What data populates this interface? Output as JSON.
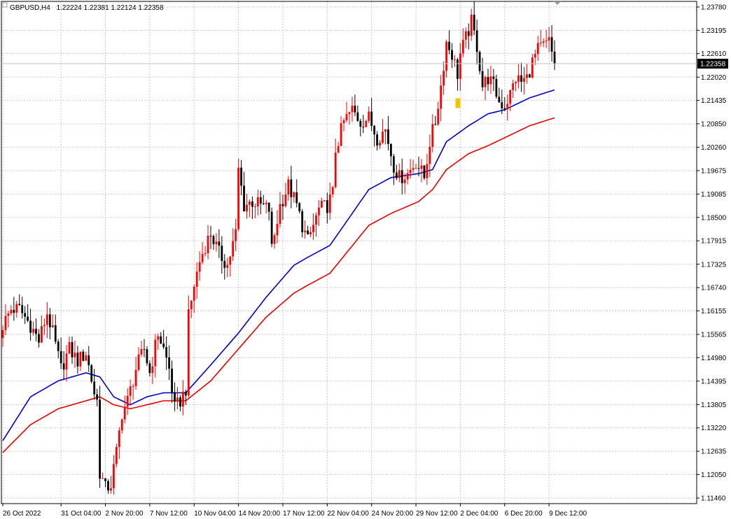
{
  "header": {
    "symbol_timeframe": "GBPUSD,H4",
    "ohlc": "1.22224 1.22381 1.22124 1.22358"
  },
  "chart_data": {
    "type": "candlestick",
    "symbol": "GBPUSD",
    "timeframe": "H4",
    "current_price": 1.22358,
    "current_price_label": "1.22358",
    "y_ticks": [
      "1.23780",
      "1.23195",
      "1.22610",
      "1.22020",
      "1.21435",
      "1.20850",
      "1.20260",
      "1.19675",
      "1.19085",
      "1.18500",
      "1.17915",
      "1.17325",
      "1.16740",
      "1.16155",
      "1.15565",
      "1.14980",
      "1.14395",
      "1.13805",
      "1.13220",
      "1.12635",
      "1.12050",
      "1.11460"
    ],
    "ylim": [
      1.1132,
      1.2392
    ],
    "x_ticks": [
      {
        "label": "26 Oct 2022",
        "bar": 0
      },
      {
        "label": "31 Oct 04:00",
        "bar": 21
      },
      {
        "label": "2 Nov 20:00",
        "bar": 37
      },
      {
        "label": "7 Nov 12:00",
        "bar": 53
      },
      {
        "label": "10 Nov 04:00",
        "bar": 69
      },
      {
        "label": "14 Nov 20:00",
        "bar": 85
      },
      {
        "label": "17 Nov 12:00",
        "bar": 101
      },
      {
        "label": "22 Nov 04:00",
        "bar": 117
      },
      {
        "label": "24 Nov 20:00",
        "bar": 133
      },
      {
        "label": "29 Nov 12:00",
        "bar": 149
      },
      {
        "label": "2 Dec 04:00",
        "bar": 165
      },
      {
        "label": "6 Dec 20:00",
        "bar": 181
      },
      {
        "label": "9 Dec 12:00",
        "bar": 197
      }
    ],
    "bar_count": 200,
    "candle_anchors": [
      [
        0,
        1.158
      ],
      [
        3,
        1.162
      ],
      [
        6,
        1.162
      ],
      [
        10,
        1.158
      ],
      [
        13,
        1.154
      ],
      [
        16,
        1.161
      ],
      [
        18,
        1.156
      ],
      [
        21,
        1.147
      ],
      [
        24,
        1.152
      ],
      [
        27,
        1.149
      ],
      [
        30,
        1.151
      ],
      [
        33,
        1.141
      ],
      [
        34,
        1.139
      ],
      [
        35,
        1.121
      ],
      [
        37,
        1.117
      ],
      [
        39,
        1.118
      ],
      [
        41,
        1.126
      ],
      [
        43,
        1.136
      ],
      [
        45,
        1.139
      ],
      [
        48,
        1.147
      ],
      [
        51,
        1.152
      ],
      [
        53,
        1.146
      ],
      [
        56,
        1.156
      ],
      [
        58,
        1.152
      ],
      [
        60,
        1.147
      ],
      [
        62,
        1.137
      ],
      [
        64,
        1.139
      ],
      [
        66,
        1.142
      ],
      [
        67,
        1.16
      ],
      [
        69,
        1.168
      ],
      [
        71,
        1.174
      ],
      [
        73,
        1.178
      ],
      [
        75,
        1.181
      ],
      [
        78,
        1.176
      ],
      [
        81,
        1.173
      ],
      [
        84,
        1.181
      ],
      [
        85,
        1.197
      ],
      [
        87,
        1.188
      ],
      [
        90,
        1.189
      ],
      [
        93,
        1.188
      ],
      [
        96,
        1.187
      ],
      [
        97,
        1.177
      ],
      [
        100,
        1.188
      ],
      [
        103,
        1.193
      ],
      [
        106,
        1.188
      ],
      [
        108,
        1.183
      ],
      [
        110,
        1.179
      ],
      [
        112,
        1.183
      ],
      [
        114,
        1.187
      ],
      [
        117,
        1.188
      ],
      [
        119,
        1.191
      ],
      [
        120,
        1.202
      ],
      [
        123,
        1.209
      ],
      [
        126,
        1.212
      ],
      [
        129,
        1.209
      ],
      [
        132,
        1.21
      ],
      [
        135,
        1.205
      ],
      [
        138,
        1.207
      ],
      [
        141,
        1.198
      ],
      [
        143,
        1.195
      ],
      [
        146,
        1.196
      ],
      [
        149,
        1.199
      ],
      [
        152,
        1.195
      ],
      [
        154,
        1.204
      ],
      [
        156,
        1.209
      ],
      [
        158,
        1.218
      ],
      [
        160,
        1.229
      ],
      [
        162,
        1.226
      ],
      [
        164,
        1.221
      ],
      [
        165,
        1.226
      ],
      [
        167,
        1.23
      ],
      [
        169,
        1.234
      ],
      [
        171,
        1.228
      ],
      [
        173,
        1.218
      ],
      [
        175,
        1.22
      ],
      [
        177,
        1.218
      ],
      [
        179,
        1.214
      ],
      [
        181,
        1.213
      ],
      [
        183,
        1.216
      ],
      [
        185,
        1.22
      ],
      [
        187,
        1.219
      ],
      [
        189,
        1.22
      ],
      [
        191,
        1.224
      ],
      [
        193,
        1.227
      ],
      [
        195,
        1.228
      ],
      [
        197,
        1.229
      ],
      [
        199,
        1.2236
      ]
    ],
    "series": [
      {
        "color": "#0000c8",
        "type": "moving-average-fast",
        "anchors": [
          [
            0,
            1.129
          ],
          [
            10,
            1.14
          ],
          [
            20,
            1.144
          ],
          [
            30,
            1.146
          ],
          [
            35,
            1.145
          ],
          [
            40,
            1.14
          ],
          [
            46,
            1.138
          ],
          [
            52,
            1.14
          ],
          [
            58,
            1.141
          ],
          [
            66,
            1.141
          ],
          [
            75,
            1.148
          ],
          [
            85,
            1.156
          ],
          [
            95,
            1.165
          ],
          [
            105,
            1.173
          ],
          [
            110,
            1.175
          ],
          [
            118,
            1.178
          ],
          [
            125,
            1.185
          ],
          [
            132,
            1.192
          ],
          [
            140,
            1.195
          ],
          [
            150,
            1.196
          ],
          [
            155,
            1.197
          ],
          [
            160,
            1.204
          ],
          [
            168,
            1.208
          ],
          [
            175,
            1.211
          ],
          [
            181,
            1.212
          ],
          [
            190,
            1.215
          ],
          [
            199,
            1.217
          ]
        ]
      },
      {
        "color": "#e60000",
        "type": "moving-average-slow",
        "anchors": [
          [
            0,
            1.126
          ],
          [
            10,
            1.133
          ],
          [
            20,
            1.137
          ],
          [
            30,
            1.139
          ],
          [
            35,
            1.14
          ],
          [
            40,
            1.138
          ],
          [
            46,
            1.137
          ],
          [
            52,
            1.138
          ],
          [
            58,
            1.139
          ],
          [
            66,
            1.139
          ],
          [
            75,
            1.144
          ],
          [
            85,
            1.152
          ],
          [
            95,
            1.16
          ],
          [
            105,
            1.166
          ],
          [
            110,
            1.168
          ],
          [
            118,
            1.171
          ],
          [
            125,
            1.177
          ],
          [
            132,
            1.183
          ],
          [
            140,
            1.186
          ],
          [
            150,
            1.189
          ],
          [
            155,
            1.192
          ],
          [
            160,
            1.197
          ],
          [
            168,
            1.201
          ],
          [
            175,
            1.203
          ],
          [
            181,
            1.205
          ],
          [
            190,
            1.208
          ],
          [
            199,
            1.21
          ]
        ]
      }
    ],
    "bull_color": "#ff0000",
    "bear_color": "#000000",
    "grid": true,
    "grid_style": "dotted",
    "background": "#ffffff"
  }
}
